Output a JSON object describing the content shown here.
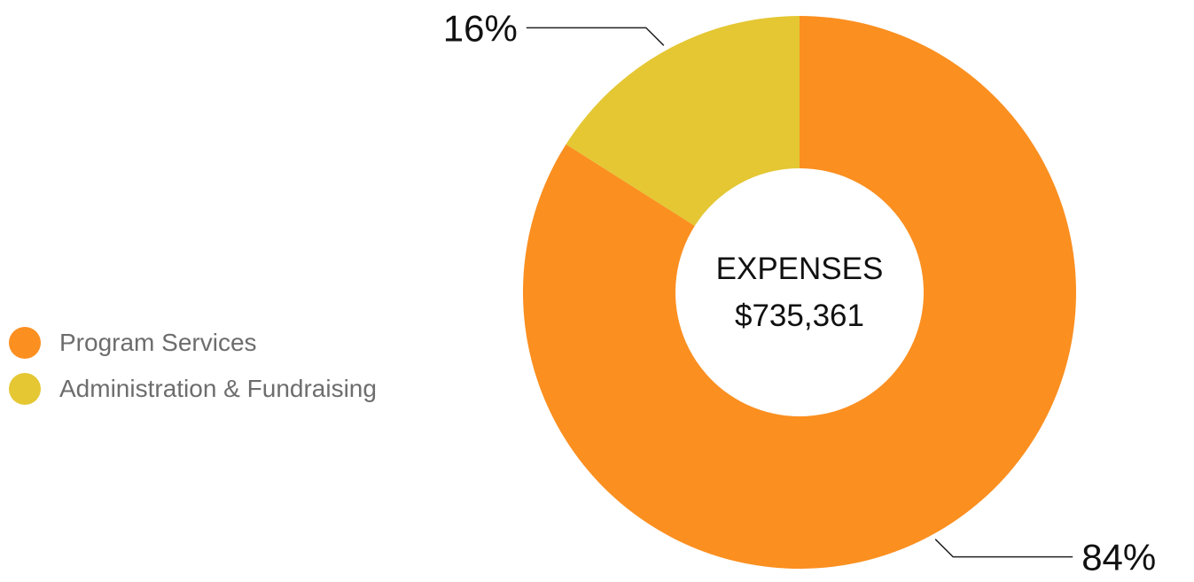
{
  "chart_data": {
    "type": "pie",
    "variant": "donut",
    "center_title": "EXPENSES",
    "center_value": "$735,361",
    "categories": [
      "Program Services",
      "Administration & Fundraising"
    ],
    "values": [
      84,
      16
    ],
    "value_unit": "%",
    "data_labels": [
      "84%",
      "16%"
    ],
    "colors": [
      "#fb8f20",
      "#e4c733"
    ],
    "legend": {
      "position": "left",
      "entries": [
        "Program Services",
        "Administration & Fundraising"
      ]
    },
    "start_angle": "12 o'clock",
    "direction": "clockwise"
  }
}
